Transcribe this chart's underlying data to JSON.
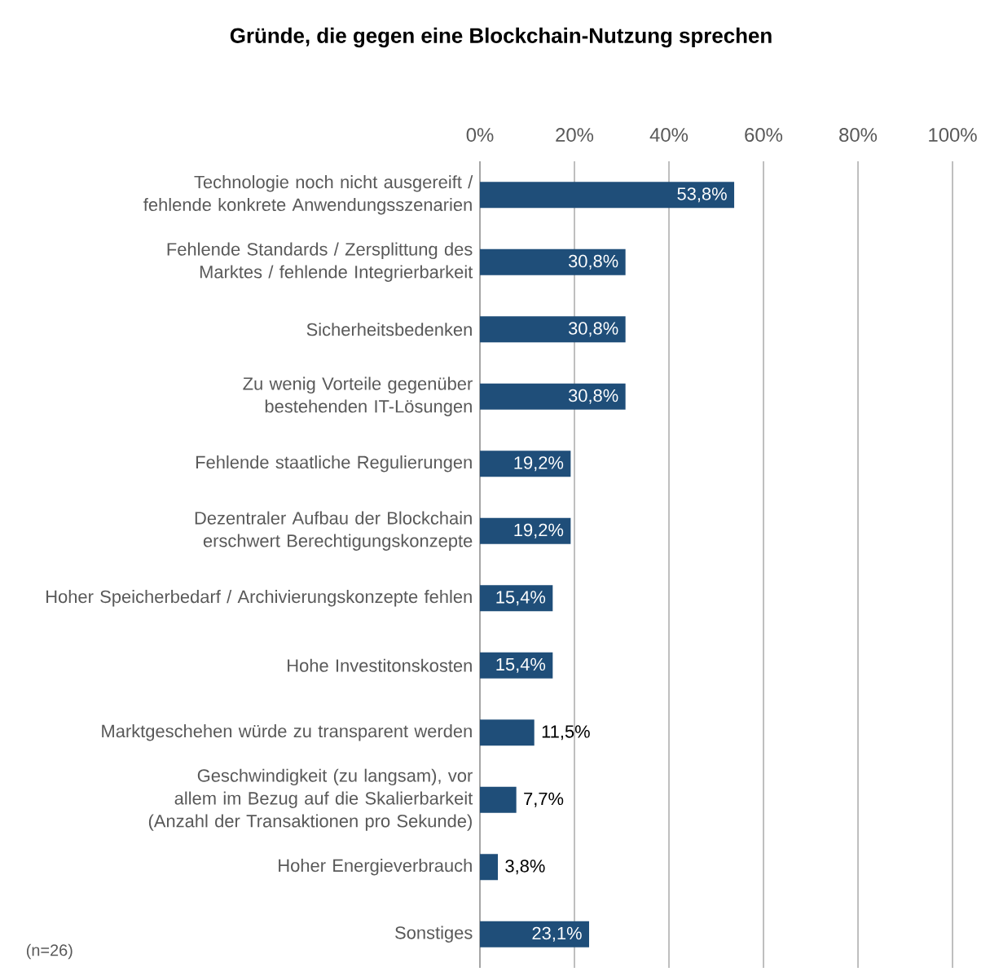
{
  "chart_data": {
    "type": "bar",
    "orientation": "horizontal",
    "title": "Gründe, die gegen eine Blockchain-Nutzung sprechen",
    "categories": [
      "Technologie noch nicht ausgereift / fehlende konkrete Anwendungsszenarien",
      "Fehlende Standards / Zersplittung des Marktes / fehlende Integrierbarkeit",
      "Sicherheitsbedenken",
      "Zu wenig Vorteile gegenüber bestehenden IT-Lösungen",
      "Fehlende staatliche Regulierungen",
      "Dezentraler Aufbau der Blockchain erschwert Berechtigungskonzepte",
      "Hoher Speicherbedarf / Archivierungskonzepte fehlen",
      "Hohe Investitonskosten",
      "Marktgeschehen würde zu transparent werden",
      "Geschwindigkeit (zu langsam), vor allem im Bezug auf die Skalierbarkeit (Anzahl der Transaktionen pro Sekunde)",
      "Hoher Energieverbrauch",
      "Sonstiges"
    ],
    "values": [
      53.8,
      30.8,
      30.8,
      30.8,
      19.2,
      19.2,
      15.4,
      15.4,
      11.5,
      7.7,
      3.8,
      23.1
    ],
    "value_labels": [
      "53,8%",
      "30,8%",
      "30,8%",
      "30,8%",
      "19,2%",
      "19,2%",
      "15,4%",
      "15,4%",
      "11,5%",
      "7,7%",
      "3,8%",
      "23,1%"
    ],
    "color": "#1f4e79",
    "xlim": [
      0,
      100
    ],
    "xticks": [
      {
        "value": 0,
        "label": "0%"
      },
      {
        "value": 20,
        "label": "20%"
      },
      {
        "value": 40,
        "label": "40%"
      },
      {
        "value": 60,
        "label": "60%"
      },
      {
        "value": 80,
        "label": "80%"
      },
      {
        "value": 100,
        "label": "100%"
      }
    ],
    "grid": "x",
    "annotations": [
      "(n=26)"
    ]
  }
}
